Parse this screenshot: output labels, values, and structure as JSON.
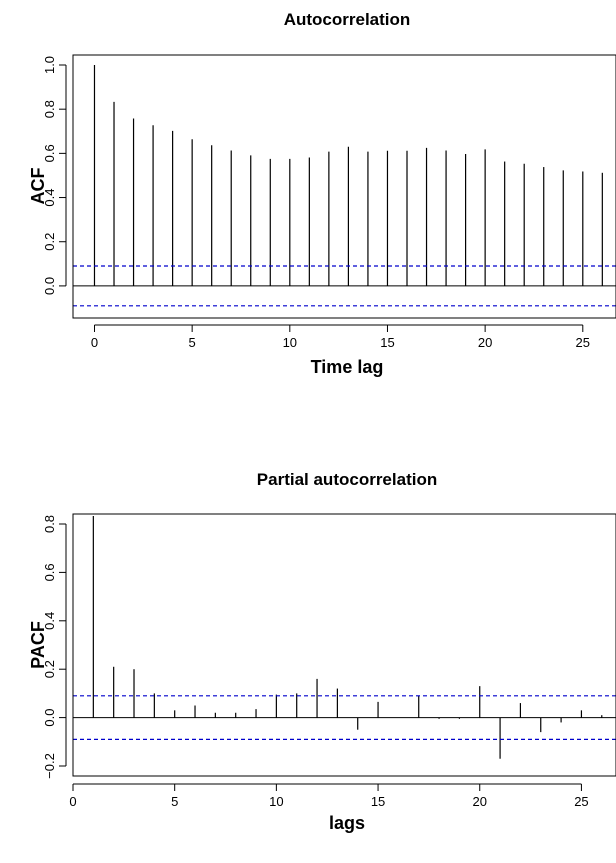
{
  "chart_data": [
    {
      "type": "bar",
      "title": "Autocorrelation",
      "xlabel": "Time lag",
      "ylabel": "ACF",
      "x": [
        0,
        1,
        2,
        3,
        4,
        5,
        6,
        7,
        8,
        9,
        10,
        11,
        12,
        13,
        14,
        15,
        16,
        17,
        18,
        19,
        20,
        21,
        22,
        23,
        24,
        25,
        26
      ],
      "values": [
        1.0,
        0.833,
        0.758,
        0.727,
        0.702,
        0.664,
        0.637,
        0.613,
        0.591,
        0.575,
        0.575,
        0.581,
        0.608,
        0.63,
        0.608,
        0.612,
        0.612,
        0.625,
        0.613,
        0.597,
        0.618,
        0.563,
        0.553,
        0.538,
        0.523,
        0.518,
        0.512
      ],
      "confidence_bound": 0.09,
      "xlim": [
        -1.1,
        26.7
      ],
      "ylim": [
        -0.1,
        1.0
      ],
      "xticks": [
        0,
        5,
        10,
        15,
        20,
        25
      ],
      "xtick_labels": [
        "0",
        "5",
        "10",
        "15",
        "20",
        "25"
      ],
      "yticks": [
        0.0,
        0.2,
        0.4,
        0.6,
        0.8,
        1.0
      ],
      "ytick_labels": [
        "0.0",
        "0.2",
        "0.4",
        "0.6",
        "0.8",
        "1.0"
      ],
      "zero_line": true,
      "confidence_color": "#0000cc",
      "bar_color": "#000000",
      "grid": false
    },
    {
      "type": "bar",
      "title": "Partial autocorrelation",
      "xlabel": "lags",
      "ylabel": "PACF",
      "x": [
        1,
        2,
        3,
        4,
        5,
        6,
        7,
        8,
        9,
        10,
        11,
        12,
        13,
        14,
        15,
        16,
        17,
        18,
        19,
        20,
        21,
        22,
        23,
        24,
        25,
        26
      ],
      "values": [
        0.833,
        0.21,
        0.2,
        0.1,
        0.03,
        0.05,
        0.02,
        0.02,
        0.035,
        0.095,
        0.1,
        0.16,
        0.12,
        -0.05,
        0.065,
        0.0,
        0.09,
        -0.005,
        -0.005,
        0.13,
        -0.17,
        0.06,
        -0.06,
        -0.02,
        0.03,
        0.01
      ],
      "confidence_bound": 0.09,
      "xlim": [
        0,
        26.7
      ],
      "ylim": [
        -0.2,
        0.8
      ],
      "xticks": [
        0,
        5,
        10,
        15,
        20,
        25
      ],
      "xtick_labels": [
        "0",
        "5",
        "10",
        "15",
        "20",
        "25"
      ],
      "yticks": [
        -0.2,
        0.0,
        0.2,
        0.4,
        0.6,
        0.8
      ],
      "ytick_labels": [
        "−0.2",
        "0.0",
        "0.2",
        "0.4",
        "0.6",
        "0.8"
      ],
      "zero_line": true,
      "confidence_color": "#0000cc",
      "bar_color": "#000000",
      "grid": false
    }
  ]
}
